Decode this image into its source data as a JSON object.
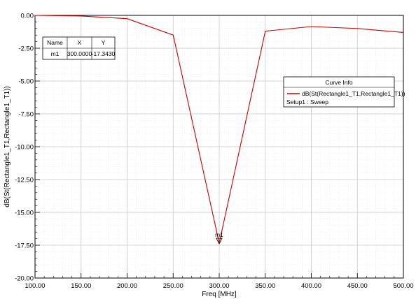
{
  "chart_data": {
    "type": "line",
    "xlabel": "Freq [MHz]",
    "ylabel": "dB(St(Rectangle1_T1,Rectangle1_T1))",
    "xlim": [
      100,
      500
    ],
    "ylim": [
      -20,
      0
    ],
    "x_ticks": [
      "100.00",
      "150.00",
      "200.00",
      "250.00",
      "300.00",
      "350.00",
      "400.00",
      "450.00",
      "500.00"
    ],
    "y_ticks": [
      "0.00",
      "-2.50",
      "-5.00",
      "-7.50",
      "-10.00",
      "-12.50",
      "-15.00",
      "-17.50",
      "-20.00"
    ],
    "grid": true,
    "color": "#cc0000",
    "series": [
      {
        "x": [
          100,
          150,
          200,
          250,
          300,
          350,
          400,
          450,
          500
        ],
        "y": [
          0.0,
          -0.05,
          -0.25,
          -1.5,
          -17.343,
          -1.2,
          -0.85,
          -1.0,
          -1.3
        ]
      }
    ],
    "marker": {
      "label": "m1",
      "x": 300,
      "y": -17.343,
      "table": {
        "headers": [
          "Name",
          "X",
          "Y"
        ],
        "row": [
          "m1",
          "300.0000",
          "-17.3430"
        ]
      }
    },
    "legend": {
      "title": "Curve Info",
      "entry": "dB(St(Rectangle1_T1,Rectangle1_T1))",
      "setup": "Setup1 : Sweep"
    }
  }
}
